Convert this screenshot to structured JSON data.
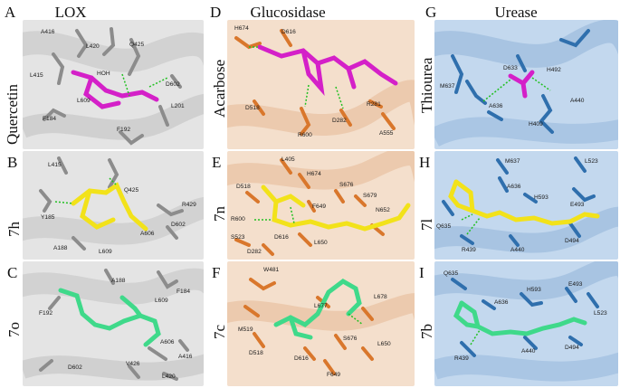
{
  "columns": [
    {
      "letter": "A",
      "title": "LOX"
    },
    {
      "letter": "D",
      "title": "Glucosidase"
    },
    {
      "letter": "G",
      "title": "Urease"
    }
  ],
  "panels": {
    "A": {
      "letter": "A",
      "ligand": "Quercetin",
      "residues": [
        "A416",
        "L420",
        "Q425",
        "L415",
        "HOH",
        "D602",
        "L609",
        "F184",
        "L201",
        "F192"
      ]
    },
    "B": {
      "letter": "B",
      "ligand": "7h",
      "residues": [
        "L415",
        "Q425",
        "R429",
        "Y185",
        "A606",
        "D602",
        "A188",
        "L609"
      ]
    },
    "C": {
      "letter": "C",
      "ligand": "7o",
      "residues": [
        "A188",
        "F184",
        "L609",
        "F192",
        "A606",
        "A416",
        "D602",
        "V426",
        "L420"
      ]
    },
    "D": {
      "letter": "D",
      "ligand": "Acarbose",
      "residues": [
        "H674",
        "D616",
        "D518",
        "R600",
        "D282",
        "R281",
        "A555"
      ]
    },
    "E": {
      "letter": "E",
      "ligand": "7n",
      "residues": [
        "L405",
        "H674",
        "D518",
        "S676",
        "S679",
        "F649",
        "R600",
        "N652",
        "S523",
        "D616",
        "L650",
        "D282"
      ]
    },
    "F": {
      "letter": "F",
      "ligand": "7c",
      "residues": [
        "W481",
        "L677",
        "L678",
        "M519",
        "S676",
        "L650",
        "D518",
        "D616",
        "F649"
      ]
    },
    "G": {
      "letter": "G",
      "ligand": "Thiourea",
      "residues": [
        "D633",
        "H492",
        "M637",
        "A440",
        "A636",
        "H409"
      ]
    },
    "H": {
      "letter": "H",
      "ligand": "7l",
      "residues": [
        "M637",
        "L523",
        "A636",
        "H593",
        "E493",
        "Q635",
        "R439",
        "A440",
        "D494"
      ]
    },
    "I": {
      "letter": "I",
      "ligand": "7b",
      "residues": [
        "Q635",
        "H593",
        "E493",
        "A636",
        "L523",
        "R439",
        "A440",
        "D494"
      ]
    }
  },
  "colors": {
    "lox_bg": "#dedede",
    "lox_res": "#8c8c8c",
    "glu_bg": "#f3dcc8",
    "glu_res": "#d9772c",
    "ure_bg": "#bdd3ea",
    "ure_res": "#2f6fad",
    "magenta": "#d420c8",
    "yellow": "#f2e21a",
    "green": "#3fd98a",
    "oxygen": "#e03030",
    "nitrogen": "#3a3ae0",
    "hbond": "#22c022"
  }
}
